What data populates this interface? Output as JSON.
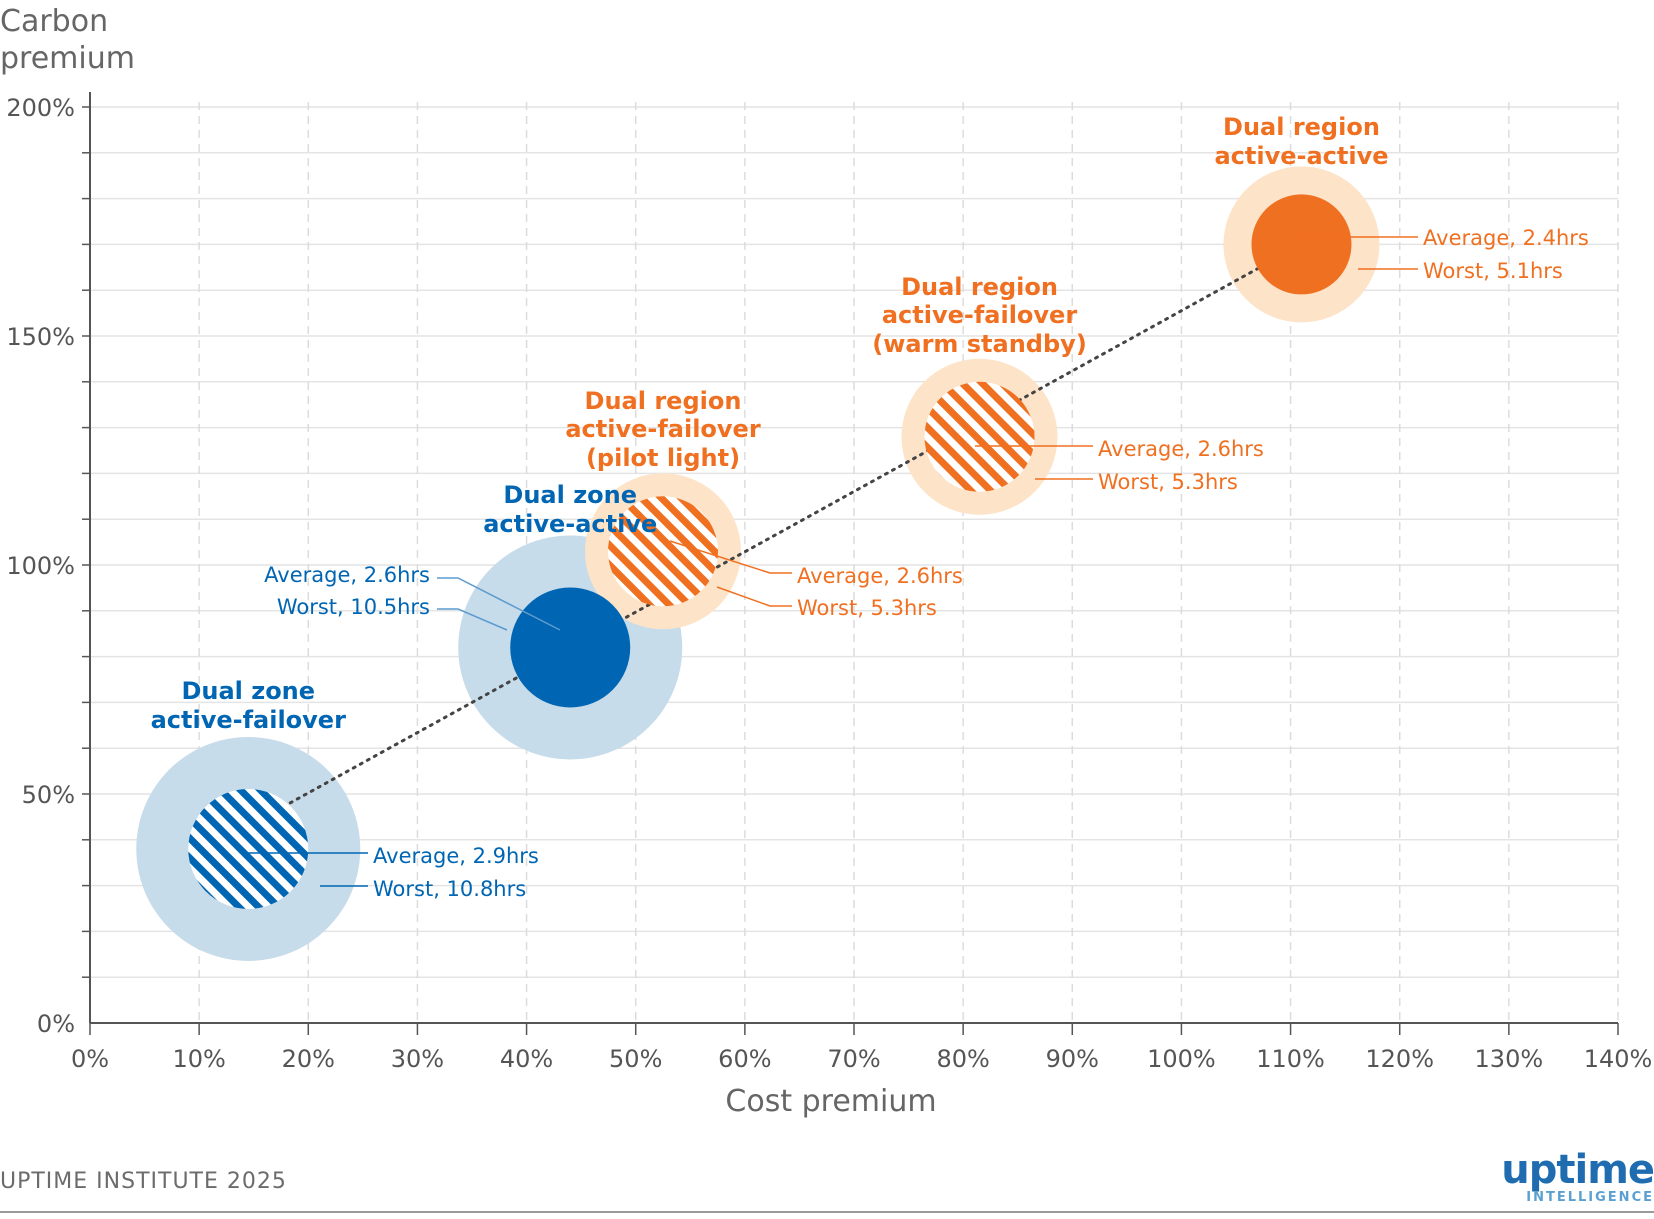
{
  "chart_data": {
    "type": "scatter",
    "title": "",
    "xlabel": "Cost premium",
    "ylabel": "Carbon premium",
    "xlim": [
      0,
      140
    ],
    "ylim": [
      0,
      200
    ],
    "x_ticks": [
      "0%",
      "10%",
      "20%",
      "30%",
      "40%",
      "50%",
      "60%",
      "70%",
      "80%",
      "90%",
      "100%",
      "110%",
      "120%",
      "130%",
      "140%"
    ],
    "y_ticks": [
      "0%",
      "50%",
      "100%",
      "150%",
      "200%"
    ],
    "colors": {
      "zone": "#0066b3",
      "zone_halo": "#c7dcea",
      "region": "#f07021",
      "region_halo": "#fde3c8"
    },
    "trend_line": {
      "from": [
        14.5,
        43
      ],
      "to": [
        111,
        170
      ]
    },
    "points": [
      {
        "name": "Dual zone active-failover",
        "label_lines": [
          "Dual zone",
          "active-failover"
        ],
        "x": 14.5,
        "y": 38,
        "group": "zone",
        "hatched": true,
        "average": "Average, 2.9hrs",
        "worst": "Worst, 10.8hrs"
      },
      {
        "name": "Dual zone active-active",
        "label_lines": [
          "Dual zone",
          "active-active"
        ],
        "x": 44,
        "y": 82,
        "group": "zone",
        "hatched": false,
        "average": "Average, 2.6hrs",
        "worst": "Worst, 10.5hrs"
      },
      {
        "name": "Dual region active-failover (pilot light)",
        "label_lines": [
          "Dual region",
          "active-failover",
          "(pilot light)"
        ],
        "x": 52.5,
        "y": 103,
        "group": "region",
        "hatched": true,
        "average": "Average, 2.6hrs",
        "worst": "Worst, 5.3hrs"
      },
      {
        "name": "Dual region active-failover (warm standby)",
        "label_lines": [
          "Dual region",
          "active-failover",
          "(warm standby)"
        ],
        "x": 81.5,
        "y": 128,
        "group": "region",
        "hatched": true,
        "average": "Average, 2.6hrs",
        "worst": "Worst, 5.3hrs"
      },
      {
        "name": "Dual region active-active",
        "label_lines": [
          "Dual region",
          "active-active"
        ],
        "x": 111,
        "y": 170,
        "group": "region",
        "hatched": false,
        "average": "Average, 2.4hrs",
        "worst": "Worst, 5.1hrs"
      }
    ]
  },
  "footer": {
    "source": "UPTIME INSTITUTE 2025"
  },
  "logo": {
    "main": "uptime",
    "sub": "INTELLIGENCE"
  }
}
